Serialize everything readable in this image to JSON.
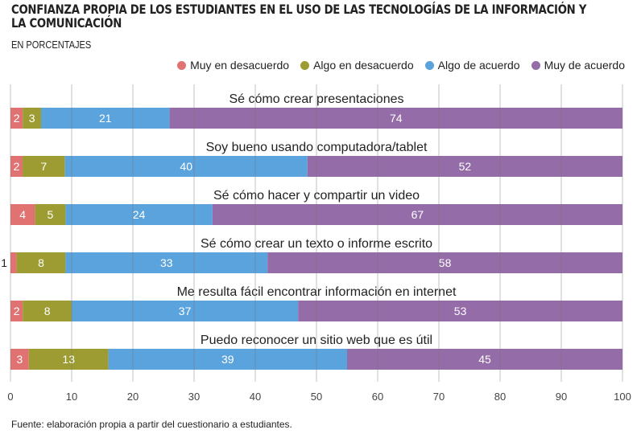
{
  "chart_data": {
    "type": "bar",
    "orientation": "horizontal-stacked",
    "title": "CONFIANZA PROPIA DE LOS ESTUDIANTES EN EL USO DE LAS TECNOLOGÍAS DE LA INFORMACIÓN Y LA COMUNICACIÓN",
    "subtitle": "EN PORCENTAJES",
    "legend_position": "top-right",
    "series": [
      {
        "name": "Muy en desacuerdo",
        "color": "#E07272"
      },
      {
        "name": "Algo en desacuerdo",
        "color": "#9C9C32"
      },
      {
        "name": "Algo de acuerdo",
        "color": "#5BA3DC"
      },
      {
        "name": "Muy de acuerdo",
        "color": "#946CA8"
      }
    ],
    "categories": [
      {
        "label": "Sé cómo crear presentaciones",
        "values": [
          2,
          3,
          21,
          74
        ]
      },
      {
        "label": "Soy bueno usando computadora/tablet",
        "values": [
          2,
          7,
          40,
          52
        ]
      },
      {
        "label": "Sé cómo hacer y compartir un video",
        "values": [
          4,
          5,
          24,
          67
        ]
      },
      {
        "label": "Sé cómo crear un texto o informe escrito",
        "values": [
          1,
          8,
          33,
          58
        ]
      },
      {
        "label": "Me resulta fácil encontrar información en internet",
        "values": [
          2,
          8,
          37,
          53
        ]
      },
      {
        "label": "Puedo reconocer un sitio web que es útil",
        "values": [
          3,
          13,
          39,
          45
        ]
      }
    ],
    "xlim": [
      0,
      100
    ],
    "xticks": [
      0,
      10,
      20,
      30,
      40,
      50,
      60,
      70,
      80,
      90,
      100
    ],
    "grid": true
  },
  "source": "Fuente: elaboración propia a partir del cuestionario a estudiantes."
}
